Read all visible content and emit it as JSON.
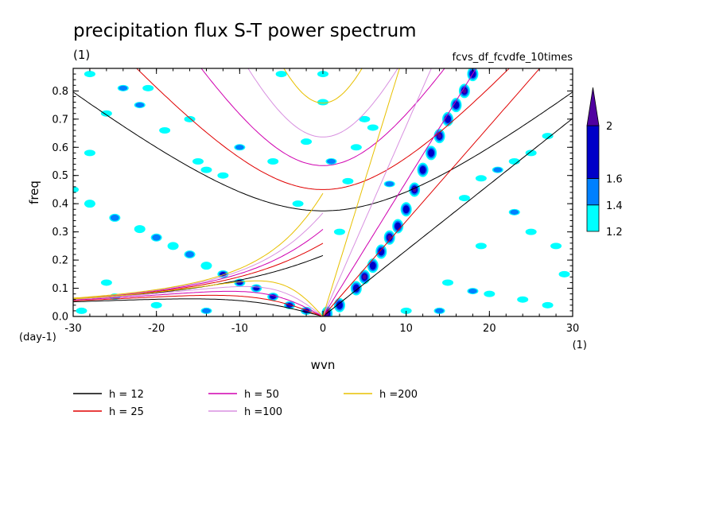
{
  "chart_data": {
    "type": "heatmap",
    "title": "precipitation flux S-T power spectrum",
    "subtitle_left": "(1)",
    "subtitle_right": "fcvs_df_fcvdfe_10times",
    "xlabel": "wvn",
    "ylabel": "freq",
    "x_unit": "(1)",
    "y_unit": "(day-1)",
    "xlim": [
      -30,
      30
    ],
    "ylim": [
      0,
      0.88
    ],
    "x_ticks": [
      -30,
      -20,
      -10,
      0,
      10,
      20,
      30
    ],
    "y_ticks": [
      0.0,
      0.1,
      0.2,
      0.3,
      0.4,
      0.5,
      0.6,
      0.7,
      0.8
    ],
    "x_tick_labels": [
      "-30",
      "-20",
      "-10",
      "0",
      "10",
      "20",
      "30"
    ],
    "y_tick_labels": [
      "0.0",
      "0.1",
      "0.2",
      "0.3",
      "0.4",
      "0.5",
      "0.6",
      "0.7",
      "0.8"
    ],
    "colorbar": {
      "levels": [
        1.2,
        1.4,
        1.6,
        2
      ],
      "level_labels": [
        "1.2",
        "1.4",
        "1.6",
        "2"
      ],
      "colors": [
        "#00ffff",
        "#0080ff",
        "#0000c8",
        "#5000a0"
      ]
    },
    "dispersion_curves": [
      {
        "label": "h = 12",
        "h": 12,
        "color": "#000000"
      },
      {
        "label": "h = 25",
        "h": 25,
        "color": "#e00000"
      },
      {
        "label": "h = 50",
        "h": 50,
        "color": "#d000b0"
      },
      {
        "label": "h =100",
        "h": 100,
        "color": "#d890e0"
      },
      {
        "label": "h =200",
        "h": 200,
        "color": "#e8c000"
      }
    ],
    "features": {
      "kelvin_ridge": [
        [
          0.5,
          0.01
        ],
        [
          2,
          0.04
        ],
        [
          4,
          0.1
        ],
        [
          5,
          0.14
        ],
        [
          6,
          0.18
        ],
        [
          7,
          0.23
        ],
        [
          8,
          0.28
        ],
        [
          9,
          0.32
        ],
        [
          10,
          0.38
        ],
        [
          11,
          0.45
        ],
        [
          12,
          0.52
        ],
        [
          13,
          0.58
        ],
        [
          14,
          0.64
        ],
        [
          15,
          0.7
        ],
        [
          16,
          0.75
        ],
        [
          17,
          0.8
        ],
        [
          18,
          0.86
        ]
      ],
      "westward_band": [
        [
          -2,
          0.02
        ],
        [
          -4,
          0.04
        ],
        [
          -6,
          0.07
        ],
        [
          -8,
          0.1
        ],
        [
          -10,
          0.12
        ],
        [
          -12,
          0.15
        ],
        [
          -14,
          0.18
        ],
        [
          -16,
          0.22
        ],
        [
          -18,
          0.25
        ],
        [
          -20,
          0.28
        ],
        [
          -22,
          0.31
        ],
        [
          -25,
          0.35
        ],
        [
          -28,
          0.4
        ]
      ],
      "speckle": [
        [
          -24,
          0.81
        ],
        [
          -21,
          0.81
        ],
        [
          -30,
          0.45
        ],
        [
          -28,
          0.58
        ],
        [
          -26,
          0.72
        ],
        [
          -22,
          0.75
        ],
        [
          -19,
          0.66
        ],
        [
          -15,
          0.55
        ],
        [
          -14,
          0.52
        ],
        [
          -12,
          0.5
        ],
        [
          -10,
          0.6
        ],
        [
          -6,
          0.55
        ],
        [
          -3,
          0.4
        ],
        [
          -2,
          0.62
        ],
        [
          0,
          0.76
        ],
        [
          1,
          0.55
        ],
        [
          3,
          0.48
        ],
        [
          4,
          0.6
        ],
        [
          5,
          0.7
        ],
        [
          6,
          0.67
        ],
        [
          8,
          0.47
        ],
        [
          2,
          0.3
        ],
        [
          -5,
          0.86
        ],
        [
          0,
          0.86
        ],
        [
          19,
          0.49
        ],
        [
          21,
          0.52
        ],
        [
          23,
          0.55
        ],
        [
          25,
          0.58
        ],
        [
          27,
          0.64
        ],
        [
          17,
          0.42
        ],
        [
          23,
          0.37
        ],
        [
          25,
          0.3
        ],
        [
          28,
          0.25
        ],
        [
          19,
          0.25
        ],
        [
          15,
          0.12
        ],
        [
          18,
          0.09
        ],
        [
          20,
          0.08
        ],
        [
          24,
          0.06
        ],
        [
          27,
          0.04
        ],
        [
          29,
          0.15
        ],
        [
          14,
          0.02
        ],
        [
          10,
          0.02
        ],
        [
          -29,
          0.02
        ],
        [
          -20,
          0.04
        ],
        [
          -25,
          0.07
        ],
        [
          -14,
          0.02
        ],
        [
          -26,
          0.12
        ],
        [
          -28,
          0.86
        ],
        [
          -16,
          0.7
        ]
      ]
    }
  }
}
